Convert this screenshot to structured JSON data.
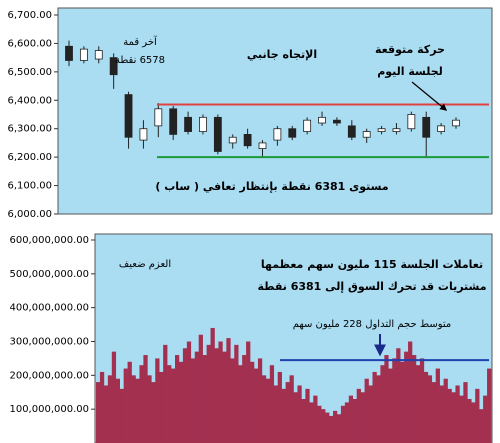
{
  "chart_data": [
    {
      "type": "candlestick",
      "ylim": [
        6000,
        6700
      ],
      "yticks": [
        {
          "value": 6000,
          "label": "6,000.00"
        },
        {
          "value": 6100,
          "label": "6,100.00"
        },
        {
          "value": 6200,
          "label": "6,200.00"
        },
        {
          "value": 6300,
          "label": "6,300.00"
        },
        {
          "value": 6400,
          "label": "6,400.00"
        },
        {
          "value": 6500,
          "label": "6,500.00"
        },
        {
          "value": 6600,
          "label": "6,600.00"
        },
        {
          "value": 6700,
          "label": "6,700.00"
        }
      ],
      "open": [
        6590,
        6540,
        6545,
        6550,
        6420,
        6260,
        6310,
        6370,
        6340,
        6290,
        6340,
        6250,
        6280,
        6230,
        6260,
        6300,
        6290,
        6320,
        6330,
        6310,
        6270,
        6290,
        6290,
        6300,
        6340,
        6290,
        6310
      ],
      "high": [
        6610,
        6590,
        6590,
        6565,
        6430,
        6330,
        6390,
        6380,
        6360,
        6350,
        6350,
        6280,
        6300,
        6260,
        6310,
        6310,
        6340,
        6360,
        6340,
        6330,
        6300,
        6310,
        6320,
        6360,
        6360,
        6320,
        6340
      ],
      "low": [
        6520,
        6530,
        6530,
        6440,
        6230,
        6230,
        6270,
        6260,
        6280,
        6280,
        6210,
        6230,
        6230,
        6200,
        6240,
        6260,
        6280,
        6310,
        6310,
        6260,
        6250,
        6280,
        6280,
        6290,
        6200,
        6280,
        6300
      ],
      "close": [
        6540,
        6580,
        6575,
        6490,
        6270,
        6300,
        6370,
        6280,
        6290,
        6340,
        6220,
        6270,
        6240,
        6250,
        6300,
        6270,
        6330,
        6340,
        6320,
        6270,
        6290,
        6300,
        6300,
        6350,
        6270,
        6310,
        6330
      ],
      "up_color": "#ffffff",
      "down_color": "#222222",
      "background": "#aadcf2",
      "reference_lines": [
        {
          "value": 6385,
          "color": "#e04040"
        },
        {
          "value": 6200,
          "color": "#1a9a3a"
        }
      ],
      "annotations": [
        "آخر قمة",
        "6578 نقطة",
        "الإتجاه جانبي",
        "حركة متوقعة",
        "لجلسة اليوم",
        "مستوى 6381 نقطة بإنتظار تعافي ( ساب )"
      ]
    },
    {
      "type": "bar",
      "ylim": [
        0,
        600000000
      ],
      "yticks": [
        {
          "value": 100000000,
          "label": "100,000,000.00"
        },
        {
          "value": 200000000,
          "label": "200,000,000.00"
        },
        {
          "value": 300000000,
          "label": "300,000,000.00"
        },
        {
          "value": 400000000,
          "label": "400,000,000.00"
        },
        {
          "value": 500000000,
          "label": "500,000,000.00"
        },
        {
          "value": 600000000,
          "label": "600,000,000.00"
        }
      ],
      "values": [
        180000000.0,
        210000000.0,
        170000000.0,
        200000000.0,
        270000000.0,
        190000000.0,
        160000000.0,
        220000000.0,
        240000000.0,
        200000000.0,
        190000000.0,
        230000000.0,
        260000000.0,
        200000000.0,
        180000000.0,
        250000000.0,
        210000000.0,
        290000000.0,
        230000000.0,
        220000000.0,
        260000000.0,
        240000000.0,
        280000000.0,
        300000000.0,
        250000000.0,
        270000000.0,
        320000000.0,
        260000000.0,
        290000000.0,
        340000000.0,
        280000000.0,
        300000000.0,
        270000000.0,
        310000000.0,
        250000000.0,
        290000000.0,
        230000000.0,
        260000000.0,
        300000000.0,
        240000000.0,
        220000000.0,
        250000000.0,
        200000000.0,
        190000000.0,
        230000000.0,
        170000000.0,
        210000000.0,
        160000000.0,
        180000000.0,
        200000000.0,
        150000000.0,
        170000000.0,
        130000000.0,
        160000000.0,
        120000000.0,
        140000000.0,
        110000000.0,
        100000000.0,
        90000000.0,
        80000000.0,
        95000000.0,
        85000000.0,
        110000000.0,
        120000000.0,
        140000000.0,
        130000000.0,
        160000000.0,
        150000000.0,
        190000000.0,
        170000000.0,
        210000000.0,
        200000000.0,
        230000000.0,
        260000000.0,
        220000000.0,
        250000000.0,
        280000000.0,
        240000000.0,
        270000000.0,
        300000000.0,
        260000000.0,
        230000000.0,
        250000000.0,
        210000000.0,
        200000000.0,
        180000000.0,
        220000000.0,
        170000000.0,
        190000000.0,
        160000000.0,
        150000000.0,
        170000000.0,
        140000000.0,
        180000000.0,
        130000000.0,
        120000000.0,
        160000000.0,
        100000000.0,
        140000000.0,
        220000000.0
      ],
      "color": "#a3304f",
      "background": "#aadcf2",
      "reference_lines": [
        {
          "value": 245000000,
          "color": "#2040b0"
        }
      ],
      "annotations": [
        "العزم ضعيف",
        "تعاملات الجلسة 115 مليون سهم معظمها",
        "مشتريات قد تحرك السوق إلى 6381 نقطة",
        "متوسط حجم التداول 228 مليون سهم"
      ]
    }
  ]
}
